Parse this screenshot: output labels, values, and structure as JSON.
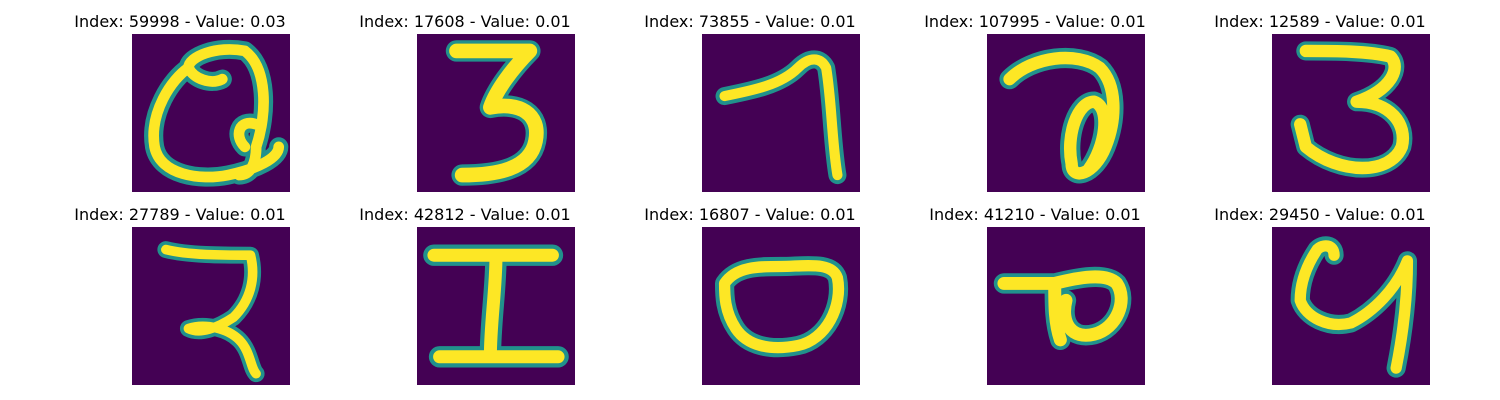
{
  "colors": {
    "background": "#440154",
    "stroke_mid": "#21918c",
    "stroke_core": "#fde725"
  },
  "panels": [
    {
      "title": "Index: 59998 - Value: 0.03",
      "glyph": "loop-with-inner-curl"
    },
    {
      "title": "Index: 17608 - Value: 0.01",
      "glyph": "three"
    },
    {
      "title": "Index: 73855 - Value: 0.01",
      "glyph": "hook-seven"
    },
    {
      "title": "Index: 107995 - Value: 0.01",
      "glyph": "curl-with-loop"
    },
    {
      "title": "Index: 12589 - Value: 0.01",
      "glyph": "three-open"
    },
    {
      "title": "Index: 27789 - Value: 0.01",
      "glyph": "seven-curl"
    },
    {
      "title": "Index: 42812 - Value: 0.01",
      "glyph": "capital-i"
    },
    {
      "title": "Index: 16807 - Value: 0.01",
      "glyph": "oval"
    },
    {
      "title": "Index: 41210 - Value: 0.01",
      "glyph": "flag-loop"
    },
    {
      "title": "Index: 29450 - Value: 0.01",
      "glyph": "u-hook"
    }
  ]
}
